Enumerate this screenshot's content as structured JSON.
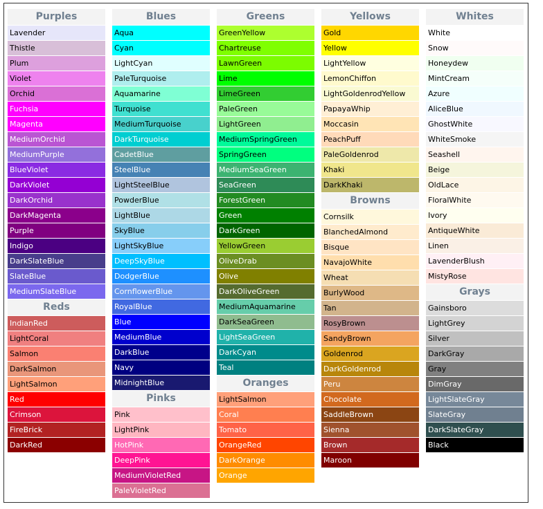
{
  "columns": [
    {
      "sections": [
        {
          "title": "Purples",
          "colors": [
            {
              "name": "Lavender",
              "hex": "#E6E6FA",
              "text": "#000000"
            },
            {
              "name": "Thistle",
              "hex": "#D8BFD8",
              "text": "#000000"
            },
            {
              "name": "Plum",
              "hex": "#DDA0DD",
              "text": "#000000"
            },
            {
              "name": "Violet",
              "hex": "#EE82EE",
              "text": "#000000"
            },
            {
              "name": "Orchid",
              "hex": "#DA70D6",
              "text": "#000000"
            },
            {
              "name": "Fuchsia",
              "hex": "#FF00FF",
              "text": "#FFFFFF"
            },
            {
              "name": "Magenta",
              "hex": "#FF00FF",
              "text": "#FFFFFF"
            },
            {
              "name": "MediumOrchid",
              "hex": "#BA55D3",
              "text": "#FFFFFF"
            },
            {
              "name": "MediumPurple",
              "hex": "#9370DB",
              "text": "#FFFFFF"
            },
            {
              "name": "BlueViolet",
              "hex": "#8A2BE2",
              "text": "#FFFFFF"
            },
            {
              "name": "DarkViolet",
              "hex": "#9400D3",
              "text": "#FFFFFF"
            },
            {
              "name": "DarkOrchid",
              "hex": "#9932CC",
              "text": "#FFFFFF"
            },
            {
              "name": "DarkMagenta",
              "hex": "#8B008B",
              "text": "#FFFFFF"
            },
            {
              "name": "Purple",
              "hex": "#800080",
              "text": "#FFFFFF"
            },
            {
              "name": "Indigo",
              "hex": "#4B0082",
              "text": "#FFFFFF"
            },
            {
              "name": "DarkSlateBlue",
              "hex": "#483D8B",
              "text": "#FFFFFF"
            },
            {
              "name": "SlateBlue",
              "hex": "#6A5ACD",
              "text": "#FFFFFF"
            },
            {
              "name": "MediumSlateBlue",
              "hex": "#7B68EE",
              "text": "#FFFFFF"
            }
          ]
        },
        {
          "title": "Reds",
          "colors": [
            {
              "name": "IndianRed",
              "hex": "#CD5C5C",
              "text": "#FFFFFF"
            },
            {
              "name": "LightCoral",
              "hex": "#F08080",
              "text": "#000000"
            },
            {
              "name": "Salmon",
              "hex": "#FA8072",
              "text": "#000000"
            },
            {
              "name": "DarkSalmon",
              "hex": "#E9967A",
              "text": "#000000"
            },
            {
              "name": "LightSalmon",
              "hex": "#FFA07A",
              "text": "#000000"
            },
            {
              "name": "Red",
              "hex": "#FF0000",
              "text": "#FFFFFF"
            },
            {
              "name": "Crimson",
              "hex": "#DC143C",
              "text": "#FFFFFF"
            },
            {
              "name": "FireBrick",
              "hex": "#B22222",
              "text": "#FFFFFF"
            },
            {
              "name": "DarkRed",
              "hex": "#8B0000",
              "text": "#FFFFFF"
            }
          ]
        }
      ]
    },
    {
      "sections": [
        {
          "title": "Blues",
          "colors": [
            {
              "name": "Aqua",
              "hex": "#00FFFF",
              "text": "#000000"
            },
            {
              "name": "Cyan",
              "hex": "#00FFFF",
              "text": "#000000"
            },
            {
              "name": "LightCyan",
              "hex": "#E0FFFF",
              "text": "#000000"
            },
            {
              "name": "PaleTurquoise",
              "hex": "#AFEEEE",
              "text": "#000000"
            },
            {
              "name": "Aquamarine",
              "hex": "#7FFFD4",
              "text": "#000000"
            },
            {
              "name": "Turquoise",
              "hex": "#40E0D0",
              "text": "#000000"
            },
            {
              "name": "MediumTurquoise",
              "hex": "#48D1CC",
              "text": "#000000"
            },
            {
              "name": "DarkTurquoise",
              "hex": "#00CED1",
              "text": "#FFFFFF"
            },
            {
              "name": "CadetBlue",
              "hex": "#5F9EA0",
              "text": "#FFFFFF"
            },
            {
              "name": "SteelBlue",
              "hex": "#4682B4",
              "text": "#FFFFFF"
            },
            {
              "name": "LightSteelBlue",
              "hex": "#B0C4DE",
              "text": "#000000"
            },
            {
              "name": "PowderBlue",
              "hex": "#B0E0E6",
              "text": "#000000"
            },
            {
              "name": "LightBlue",
              "hex": "#ADD8E6",
              "text": "#000000"
            },
            {
              "name": "SkyBlue",
              "hex": "#87CEEB",
              "text": "#000000"
            },
            {
              "name": "LightSkyBlue",
              "hex": "#87CEFA",
              "text": "#000000"
            },
            {
              "name": "DeepSkyBlue",
              "hex": "#00BFFF",
              "text": "#FFFFFF"
            },
            {
              "name": "DodgerBlue",
              "hex": "#1E90FF",
              "text": "#FFFFFF"
            },
            {
              "name": "CornflowerBlue",
              "hex": "#6495ED",
              "text": "#FFFFFF"
            },
            {
              "name": "RoyalBlue",
              "hex": "#4169E1",
              "text": "#FFFFFF"
            },
            {
              "name": "Blue",
              "hex": "#0000FF",
              "text": "#FFFFFF"
            },
            {
              "name": "MediumBlue",
              "hex": "#0000CD",
              "text": "#FFFFFF"
            },
            {
              "name": "DarkBlue",
              "hex": "#00008B",
              "text": "#FFFFFF"
            },
            {
              "name": "Navy",
              "hex": "#000080",
              "text": "#FFFFFF"
            },
            {
              "name": "MidnightBlue",
              "hex": "#191970",
              "text": "#FFFFFF"
            }
          ]
        },
        {
          "title": "Pinks",
          "colors": [
            {
              "name": "Pink",
              "hex": "#FFC0CB",
              "text": "#000000"
            },
            {
              "name": "LightPink",
              "hex": "#FFB6C1",
              "text": "#000000"
            },
            {
              "name": "HotPink",
              "hex": "#FF69B4",
              "text": "#FFFFFF"
            },
            {
              "name": "DeepPink",
              "hex": "#FF1493",
              "text": "#FFFFFF"
            },
            {
              "name": "MediumVioletRed",
              "hex": "#C71585",
              "text": "#FFFFFF"
            },
            {
              "name": "PaleVioletRed",
              "hex": "#DB7093",
              "text": "#FFFFFF"
            }
          ]
        }
      ]
    },
    {
      "sections": [
        {
          "title": "Greens",
          "colors": [
            {
              "name": "GreenYellow",
              "hex": "#ADFF2F",
              "text": "#000000"
            },
            {
              "name": "Chartreuse",
              "hex": "#7FFF00",
              "text": "#000000"
            },
            {
              "name": "LawnGreen",
              "hex": "#7CFC00",
              "text": "#000000"
            },
            {
              "name": "Lime",
              "hex": "#00FF00",
              "text": "#000000"
            },
            {
              "name": "LimeGreen",
              "hex": "#32CD32",
              "text": "#000000"
            },
            {
              "name": "PaleGreen",
              "hex": "#98FB98",
              "text": "#000000"
            },
            {
              "name": "LightGreen",
              "hex": "#90EE90",
              "text": "#000000"
            },
            {
              "name": "MediumSpringGreen",
              "hex": "#00FA9A",
              "text": "#000000"
            },
            {
              "name": "SpringGreen",
              "hex": "#00FF7F",
              "text": "#000000"
            },
            {
              "name": "MediumSeaGreen",
              "hex": "#3CB371",
              "text": "#FFFFFF"
            },
            {
              "name": "SeaGreen",
              "hex": "#2E8B57",
              "text": "#FFFFFF"
            },
            {
              "name": "ForestGreen",
              "hex": "#228B22",
              "text": "#FFFFFF"
            },
            {
              "name": "Green",
              "hex": "#008000",
              "text": "#FFFFFF"
            },
            {
              "name": "DarkGreen",
              "hex": "#006400",
              "text": "#FFFFFF"
            },
            {
              "name": "YellowGreen",
              "hex": "#9ACD32",
              "text": "#000000"
            },
            {
              "name": "OliveDrab",
              "hex": "#6B8E23",
              "text": "#FFFFFF"
            },
            {
              "name": "Olive",
              "hex": "#808000",
              "text": "#FFFFFF"
            },
            {
              "name": "DarkOliveGreen",
              "hex": "#556B2F",
              "text": "#FFFFFF"
            },
            {
              "name": "MediumAquamarine",
              "hex": "#66CDAA",
              "text": "#000000"
            },
            {
              "name": "DarkSeaGreen",
              "hex": "#8FBC8F",
              "text": "#000000"
            },
            {
              "name": "LightSeaGreen",
              "hex": "#20B2AA",
              "text": "#FFFFFF"
            },
            {
              "name": "DarkCyan",
              "hex": "#008B8B",
              "text": "#FFFFFF"
            },
            {
              "name": "Teal",
              "hex": "#008080",
              "text": "#FFFFFF"
            }
          ]
        },
        {
          "title": "Oranges",
          "colors": [
            {
              "name": "LightSalmon",
              "hex": "#FFA07A",
              "text": "#000000"
            },
            {
              "name": "Coral",
              "hex": "#FF7F50",
              "text": "#FFFFFF"
            },
            {
              "name": "Tomato",
              "hex": "#FF6347",
              "text": "#FFFFFF"
            },
            {
              "name": "OrangeRed",
              "hex": "#FF4500",
              "text": "#FFFFFF"
            },
            {
              "name": "DarkOrange",
              "hex": "#FF8C00",
              "text": "#FFFFFF"
            },
            {
              "name": "Orange",
              "hex": "#FFA500",
              "text": "#FFFFFF"
            }
          ]
        }
      ]
    },
    {
      "sections": [
        {
          "title": "Yellows",
          "colors": [
            {
              "name": "Gold",
              "hex": "#FFD700",
              "text": "#000000"
            },
            {
              "name": "Yellow",
              "hex": "#FFFF00",
              "text": "#000000"
            },
            {
              "name": "LightYellow",
              "hex": "#FFFFE0",
              "text": "#000000"
            },
            {
              "name": "LemonChiffon",
              "hex": "#FFFACD",
              "text": "#000000"
            },
            {
              "name": "LightGoldenrodYellow",
              "hex": "#FAFAD2",
              "text": "#000000"
            },
            {
              "name": "PapayaWhip",
              "hex": "#FFEFD5",
              "text": "#000000"
            },
            {
              "name": "Moccasin",
              "hex": "#FFE4B5",
              "text": "#000000"
            },
            {
              "name": "PeachPuff",
              "hex": "#FFDAB9",
              "text": "#000000"
            },
            {
              "name": "PaleGoldenrod",
              "hex": "#EEE8AA",
              "text": "#000000"
            },
            {
              "name": "Khaki",
              "hex": "#F0E68C",
              "text": "#000000"
            },
            {
              "name": "DarkKhaki",
              "hex": "#BDB76B",
              "text": "#000000"
            }
          ]
        },
        {
          "title": "Browns",
          "colors": [
            {
              "name": "Cornsilk",
              "hex": "#FFF8DC",
              "text": "#000000"
            },
            {
              "name": "BlanchedAlmond",
              "hex": "#FFEBCD",
              "text": "#000000"
            },
            {
              "name": "Bisque",
              "hex": "#FFE4C4",
              "text": "#000000"
            },
            {
              "name": "NavajoWhite",
              "hex": "#FFDEAD",
              "text": "#000000"
            },
            {
              "name": "Wheat",
              "hex": "#F5DEB3",
              "text": "#000000"
            },
            {
              "name": "BurlyWood",
              "hex": "#DEB887",
              "text": "#000000"
            },
            {
              "name": "Tan",
              "hex": "#D2B48C",
              "text": "#000000"
            },
            {
              "name": "RosyBrown",
              "hex": "#BC8F8F",
              "text": "#000000"
            },
            {
              "name": "SandyBrown",
              "hex": "#F4A460",
              "text": "#000000"
            },
            {
              "name": "Goldenrod",
              "hex": "#DAA520",
              "text": "#000000"
            },
            {
              "name": "DarkGoldenrod",
              "hex": "#B8860B",
              "text": "#FFFFFF"
            },
            {
              "name": "Peru",
              "hex": "#CD853F",
              "text": "#FFFFFF"
            },
            {
              "name": "Chocolate",
              "hex": "#D2691E",
              "text": "#FFFFFF"
            },
            {
              "name": "SaddleBrown",
              "hex": "#8B4513",
              "text": "#FFFFFF"
            },
            {
              "name": "Sienna",
              "hex": "#A0522D",
              "text": "#FFFFFF"
            },
            {
              "name": "Brown",
              "hex": "#A52A2A",
              "text": "#FFFFFF"
            },
            {
              "name": "Maroon",
              "hex": "#800000",
              "text": "#FFFFFF"
            }
          ]
        }
      ]
    },
    {
      "sections": [
        {
          "title": "Whites",
          "colors": [
            {
              "name": "White",
              "hex": "#FFFFFF",
              "text": "#000000"
            },
            {
              "name": "Snow",
              "hex": "#FFFAFA",
              "text": "#000000"
            },
            {
              "name": "Honeydew",
              "hex": "#F0FFF0",
              "text": "#000000"
            },
            {
              "name": "MintCream",
              "hex": "#F5FFFA",
              "text": "#000000"
            },
            {
              "name": "Azure",
              "hex": "#F0FFFF",
              "text": "#000000"
            },
            {
              "name": "AliceBlue",
              "hex": "#F0F8FF",
              "text": "#000000"
            },
            {
              "name": "GhostWhite",
              "hex": "#F8F8FF",
              "text": "#000000"
            },
            {
              "name": "WhiteSmoke",
              "hex": "#F5F5F5",
              "text": "#000000"
            },
            {
              "name": "Seashell",
              "hex": "#FFF5EE",
              "text": "#000000"
            },
            {
              "name": "Beige",
              "hex": "#F5F5DC",
              "text": "#000000"
            },
            {
              "name": "OldLace",
              "hex": "#FDF5E6",
              "text": "#000000"
            },
            {
              "name": "FloralWhite",
              "hex": "#FFFAF0",
              "text": "#000000"
            },
            {
              "name": "Ivory",
              "hex": "#FFFFF0",
              "text": "#000000"
            },
            {
              "name": "AntiqueWhite",
              "hex": "#FAEBD7",
              "text": "#000000"
            },
            {
              "name": "Linen",
              "hex": "#FAF0E6",
              "text": "#000000"
            },
            {
              "name": "LavenderBlush",
              "hex": "#FFF0F5",
              "text": "#000000"
            },
            {
              "name": "MistyRose",
              "hex": "#FFE4E1",
              "text": "#000000"
            }
          ]
        },
        {
          "title": "Grays",
          "colors": [
            {
              "name": "Gainsboro",
              "hex": "#DCDCDC",
              "text": "#000000"
            },
            {
              "name": "LightGrey",
              "hex": "#D3D3D3",
              "text": "#000000"
            },
            {
              "name": "Silver",
              "hex": "#C0C0C0",
              "text": "#000000"
            },
            {
              "name": "DarkGray",
              "hex": "#A9A9A9",
              "text": "#000000"
            },
            {
              "name": "Gray",
              "hex": "#808080",
              "text": "#000000"
            },
            {
              "name": "DimGray",
              "hex": "#696969",
              "text": "#FFFFFF"
            },
            {
              "name": "LightSlateGray",
              "hex": "#778899",
              "text": "#FFFFFF"
            },
            {
              "name": "SlateGray",
              "hex": "#708090",
              "text": "#FFFFFF"
            },
            {
              "name": "DarkSlateGray",
              "hex": "#2F4F4F",
              "text": "#FFFFFF"
            },
            {
              "name": "Black",
              "hex": "#000000",
              "text": "#FFFFFF"
            }
          ]
        }
      ]
    }
  ]
}
